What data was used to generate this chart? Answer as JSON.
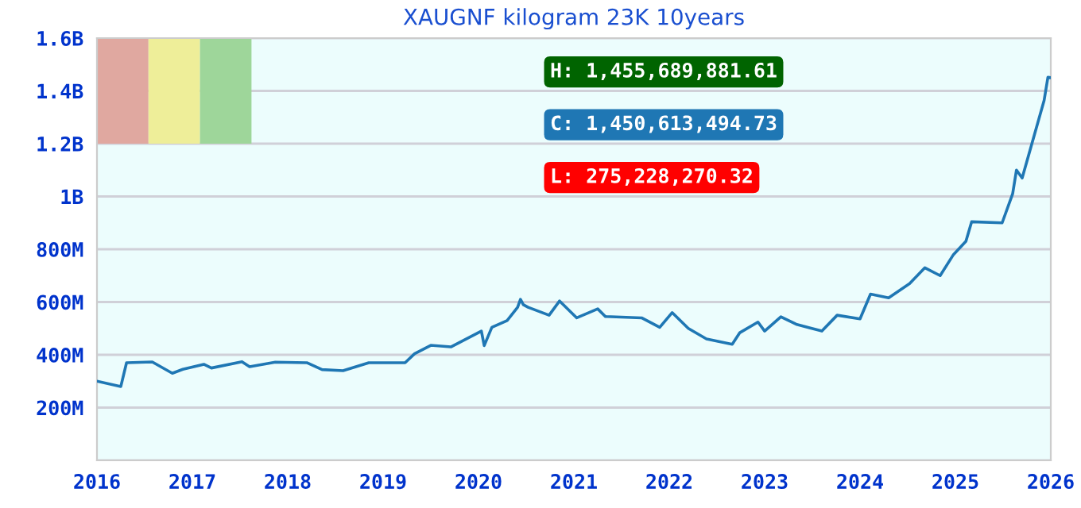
{
  "chart_data": {
    "type": "line",
    "title": "XAUGNF kilogram 23K 10years",
    "series": [
      {
        "color": "#1f77b4",
        "x": [
          2016.0,
          2016.25,
          2016.31,
          2016.58,
          2016.79,
          2016.9,
          2017.12,
          2017.2,
          2017.52,
          2017.6,
          2017.87,
          2018.2,
          2018.36,
          2018.58,
          2018.85,
          2019.23,
          2019.33,
          2019.5,
          2019.71,
          2019.87,
          2020.03,
          2020.06,
          2020.14,
          2020.3,
          2020.41,
          2020.44,
          2020.47,
          2020.52,
          2020.74,
          2020.85,
          2021.03,
          2021.25,
          2021.33,
          2021.71,
          2021.9,
          2022.03,
          2022.2,
          2022.39,
          2022.66,
          2022.74,
          2022.93,
          2023.0,
          2023.17,
          2023.33,
          2023.6,
          2023.76,
          2024.0,
          2024.11,
          2024.3,
          2024.52,
          2024.68,
          2024.84,
          2024.98,
          2025.11,
          2025.17,
          2025.49,
          2025.6,
          2025.64,
          2025.7,
          2025.93,
          2025.97,
          2026.0
        ],
        "values": [
          300000000,
          280000000,
          370000000,
          373000000,
          330000000,
          345000000,
          364000000,
          350000000,
          374000000,
          355000000,
          372000000,
          370000000,
          344000000,
          340000000,
          370000000,
          370000000,
          404000000,
          436000000,
          430000000,
          460000000,
          490000000,
          435000000,
          504000000,
          530000000,
          580000000,
          610000000,
          590000000,
          580000000,
          550000000,
          604000000,
          540000000,
          574000000,
          545000000,
          540000000,
          504000000,
          560000000,
          500000000,
          460000000,
          440000000,
          484000000,
          524000000,
          490000000,
          544000000,
          516000000,
          490000000,
          550000000,
          536000000,
          630000000,
          616000000,
          670000000,
          730000000,
          700000000,
          780000000,
          830000000,
          904000000,
          900000000,
          1010000000,
          1100000000,
          1070000000,
          1364000000,
          1452000000,
          1450000000
        ]
      }
    ],
    "xlim": [
      2016,
      2026
    ],
    "xticks": [
      2016,
      2017,
      2018,
      2019,
      2020,
      2021,
      2022,
      2023,
      2024,
      2025,
      2026
    ],
    "ylim": [
      0,
      1600000000
    ],
    "yticks": [
      {
        "value": 0,
        "label": null
      },
      {
        "value": 200000000,
        "label": "200M"
      },
      {
        "value": 400000000,
        "label": "400M"
      },
      {
        "value": 600000000,
        "label": "600M"
      },
      {
        "value": 800000000,
        "label": "800M"
      },
      {
        "value": 1000000000,
        "label": "1B"
      },
      {
        "value": 1200000000,
        "label": "1.2B"
      },
      {
        "value": 1400000000,
        "label": "1.4B"
      },
      {
        "value": 1600000000,
        "label": "1.6B"
      }
    ],
    "grid": "y",
    "legend": false,
    "marker": "none",
    "line_style": "solid",
    "annotations": [
      "H: 1,455,689,881.61",
      "C: 1,450,613,494.73",
      "L: 275,228,270.32"
    ]
  }
}
